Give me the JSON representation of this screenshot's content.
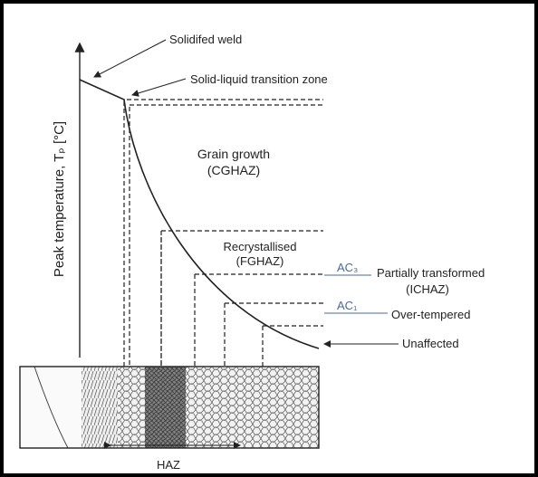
{
  "y_axis_label": "Peak temperature, Tₚ [°C]",
  "labels": {
    "solidified_weld": "Solidifed weld",
    "transition_zone": "Solid-liquid transition zone",
    "grain_growth": [
      "Grain growth",
      "(CGHAZ)"
    ],
    "recrystallised": [
      "Recrystallised",
      "(FGHAZ)"
    ],
    "ac3": "AC₃",
    "partially_transformed": [
      "Partially transformed",
      "(ICHAZ)"
    ],
    "ac1": "AC₁",
    "over_tempered": "Over-tempered",
    "unaffected": "Unaffected",
    "haz": "HAZ"
  }
}
